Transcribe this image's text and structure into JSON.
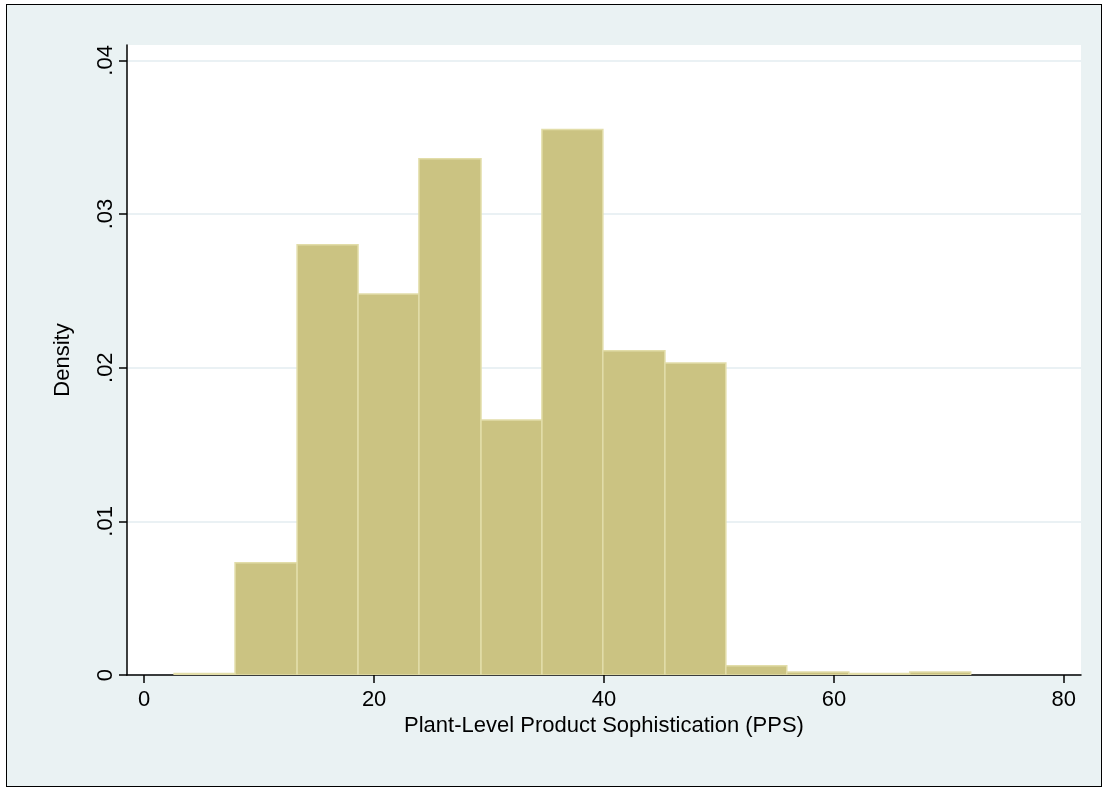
{
  "chart_data": {
    "type": "histogram",
    "xlabel": "Plant-Level Product Sophistication (PPS)",
    "ylabel": "Density",
    "bins": [
      2.6,
      7.9,
      13.3,
      18.6,
      23.9,
      29.3,
      34.6,
      39.9,
      45.3,
      50.6,
      55.9,
      61.3,
      66.6,
      71.9
    ],
    "values": [
      0.0001,
      0.0073,
      0.028,
      0.0248,
      0.0336,
      0.0166,
      0.0355,
      0.0211,
      0.0203,
      0.0006,
      0.0002,
      0.0001,
      0.0002
    ],
    "color": "#cbc382",
    "xlim": [
      -1.5,
      81.5
    ],
    "xticks": [
      0,
      20,
      40,
      60,
      80
    ],
    "ylim": [
      0,
      0.041
    ],
    "yticks": [
      0,
      {
        "value": 0.01,
        "label": ".01"
      },
      {
        "value": 0.02,
        "label": ".02"
      },
      {
        "value": 0.03,
        "label": ".03"
      },
      {
        "value": 0.04,
        "label": ".04"
      }
    ],
    "grid": "y"
  }
}
